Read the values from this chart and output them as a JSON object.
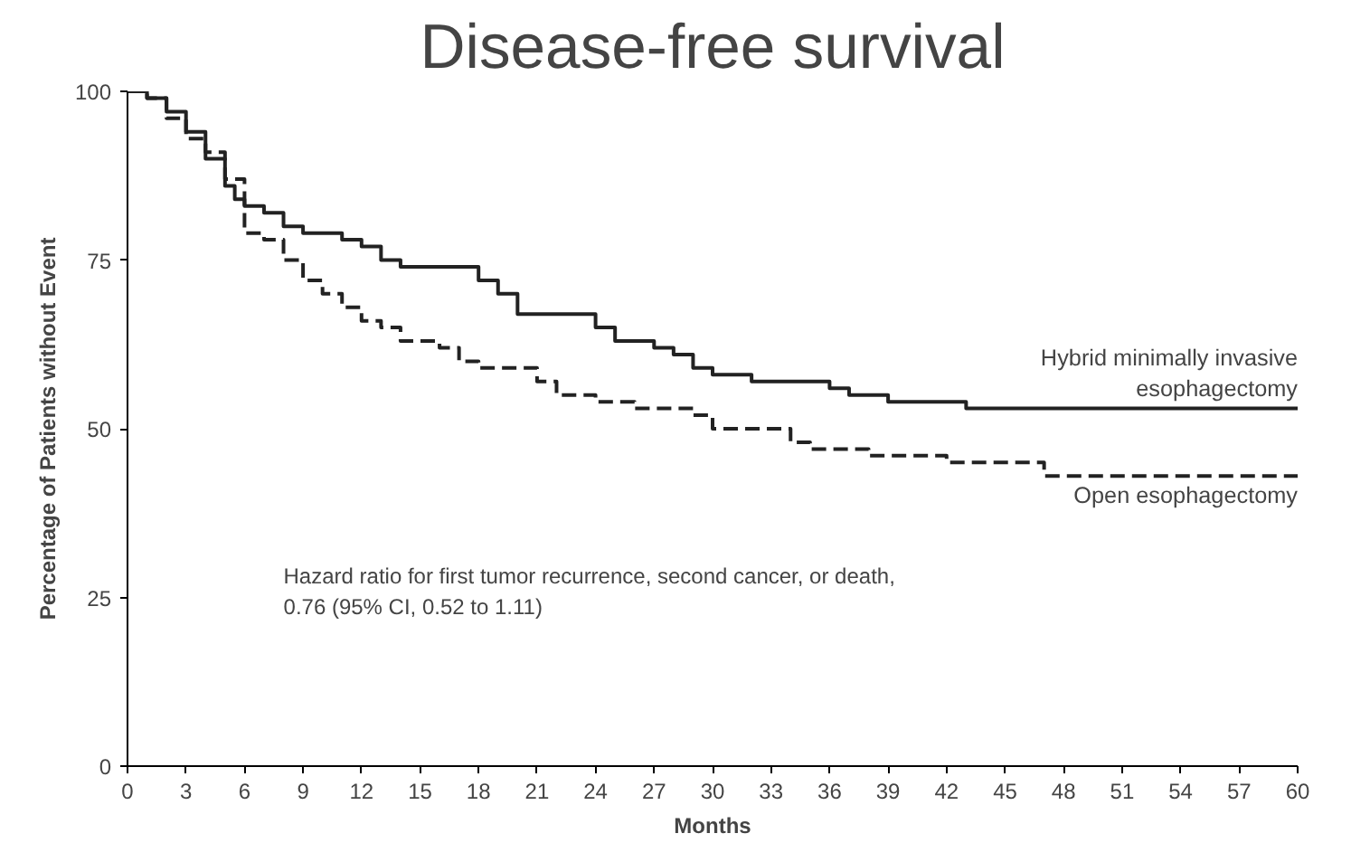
{
  "chart_data": {
    "type": "step",
    "title": "Disease-free survival",
    "xlabel": "Months",
    "ylabel": "Percentage of Patients without Event",
    "xlim": [
      0,
      60
    ],
    "ylim": [
      0,
      100
    ],
    "xticks": [
      0,
      3,
      6,
      9,
      12,
      15,
      18,
      21,
      24,
      27,
      30,
      33,
      36,
      39,
      42,
      45,
      48,
      51,
      54,
      57,
      60
    ],
    "yticks": [
      0,
      25,
      50,
      75,
      100
    ],
    "grid": false,
    "series": [
      {
        "name": "Hybrid minimally invasive\nesophagectomy",
        "color": "#222222",
        "line_style": "solid",
        "x": [
          0,
          1,
          2,
          3,
          4,
          5,
          5.5,
          6,
          7,
          8,
          9,
          11,
          12,
          13,
          14,
          17,
          18,
          19,
          20,
          23,
          24,
          25,
          27,
          28,
          29,
          30,
          32,
          36,
          37,
          39,
          43,
          60
        ],
        "values": [
          100,
          99,
          97,
          94,
          90,
          86,
          84,
          83,
          82,
          80,
          79,
          78,
          77,
          75,
          74,
          74,
          72,
          70,
          67,
          67,
          65,
          63,
          62,
          61,
          59,
          58,
          57,
          56,
          55,
          54,
          53,
          53
        ]
      },
      {
        "name": "Open esophagectomy",
        "color": "#222222",
        "line_style": "dashed",
        "x": [
          0,
          1,
          2,
          3,
          4,
          5,
          6,
          7,
          8,
          9,
          10,
          11,
          12,
          13,
          14,
          16,
          17,
          18,
          21,
          22,
          24,
          26,
          29,
          30,
          33,
          34,
          35,
          38,
          42,
          47,
          60
        ],
        "values": [
          100,
          99,
          96,
          93,
          91,
          87,
          79,
          78,
          75,
          72,
          70,
          68,
          66,
          65,
          63,
          62,
          60,
          59,
          57,
          55,
          54,
          53,
          52,
          50,
          50,
          48,
          47,
          46,
          45,
          43,
          43
        ]
      }
    ],
    "annotations": [
      {
        "text": "Hazard ratio for first tumor recurrence, second cancer, or death,\n    0.76 (95% CI, 0.52 to 1.11)"
      }
    ]
  }
}
